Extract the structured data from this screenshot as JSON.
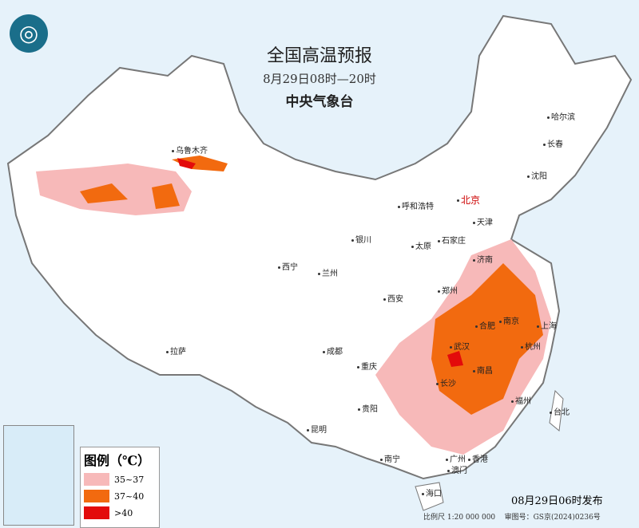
{
  "title": "全国高温预报",
  "subtitle": "8月29日08时—20时",
  "agency": "中央气象台",
  "legend": {
    "title": "图例（℃）",
    "items": [
      {
        "label": "35~37",
        "color": "#f7b9b9"
      },
      {
        "label": "37~40",
        "color": "#f26a0f"
      },
      {
        "label": ">40",
        "color": "#e30b0b"
      }
    ]
  },
  "publish": "08月29日06时发布",
  "scale": "比例尺 1:20 000 000",
  "approval": "审图号：GS京(2024)0236号",
  "cities": [
    "乌鲁木齐",
    "哈尔滨",
    "长春",
    "沈阳",
    "北京",
    "天津",
    "呼和浩特",
    "石家庄",
    "太原",
    "银川",
    "济南",
    "西宁",
    "兰州",
    "郑州",
    "西安",
    "合肥",
    "南京",
    "上海",
    "杭州",
    "武汉",
    "成都",
    "重庆",
    "长沙",
    "南昌",
    "拉萨",
    "福州",
    "台北",
    "贵阳",
    "昆明",
    "南宁",
    "广州",
    "澳门",
    "香港",
    "海口"
  ]
}
